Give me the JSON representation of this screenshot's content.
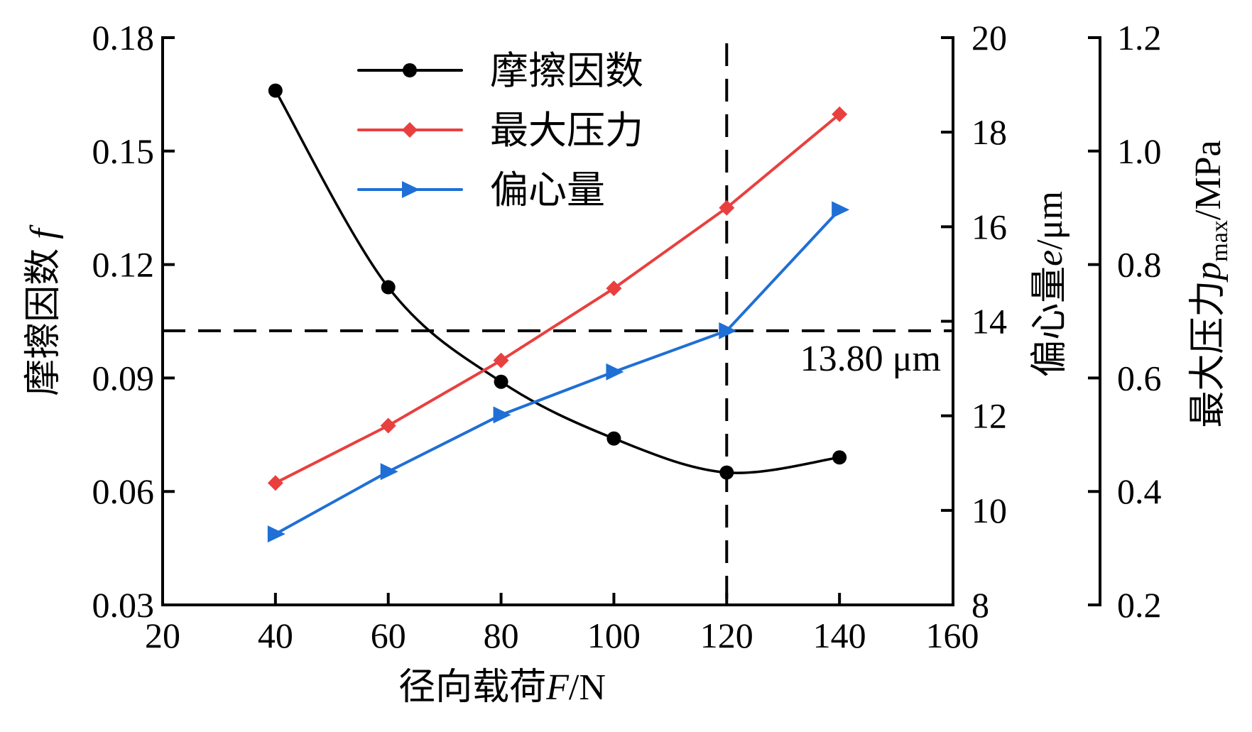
{
  "chart_data": {
    "type": "line",
    "title": "",
    "xlabel": "径向载荷F/N",
    "xlabel_parts": {
      "cn": "径向载荷",
      "var": "F",
      "unit": "/N"
    },
    "xlim": [
      20,
      160
    ],
    "xticks": [
      20,
      40,
      60,
      80,
      100,
      120,
      140,
      160
    ],
    "x": [
      40,
      60,
      80,
      100,
      120,
      140
    ],
    "axes": {
      "left": {
        "label": "摩擦因数 f",
        "label_parts": {
          "cn": "摩擦因数 ",
          "var": "f"
        },
        "ylim": [
          0.03,
          0.18
        ],
        "ticks": [
          "0.03",
          "0.06",
          "0.09",
          "0.12",
          "0.15",
          "0.18"
        ]
      },
      "right1": {
        "label": "偏心量e/μm",
        "label_parts": {
          "cn": "偏心量",
          "var": "e",
          "unit": "/μm"
        },
        "ylim": [
          8,
          20
        ],
        "ticks": [
          "8",
          "10",
          "12",
          "14",
          "16",
          "18",
          "20"
        ]
      },
      "right2": {
        "label": "最大压力pmax/MPa",
        "label_parts": {
          "cn": "最大压力",
          "var": "p",
          "sub": "max",
          "unit": "/MPa"
        },
        "ylim": [
          0.2,
          1.2
        ],
        "ticks": [
          "0.2",
          "0.4",
          "0.6",
          "0.8",
          "1.0",
          "1.2"
        ]
      }
    },
    "series": [
      {
        "name": "摩擦因数",
        "axis": "left",
        "color": "#000000",
        "marker": "circle",
        "smooth": true,
        "values": [
          0.166,
          0.114,
          0.089,
          0.074,
          0.065,
          0.069
        ]
      },
      {
        "name": "最大压力",
        "axis": "right2",
        "color": "#e8403f",
        "marker": "diamond",
        "smooth": false,
        "values": [
          0.415,
          0.516,
          0.631,
          0.758,
          0.9,
          1.065
        ]
      },
      {
        "name": "偏心量",
        "axis": "right1",
        "color": "#1f6fd6",
        "marker": "triangle-right",
        "smooth": false,
        "values": [
          9.5,
          10.82,
          12.02,
          12.93,
          13.8,
          16.36
        ]
      }
    ],
    "reference_lines": {
      "vertical_x": 120,
      "horizontal_e": 13.8,
      "annotation": "13.80 μm"
    },
    "legend": {
      "position": "top-left",
      "entries": [
        "摩擦因数",
        "最大压力",
        "偏心量"
      ]
    },
    "grid": false
  }
}
